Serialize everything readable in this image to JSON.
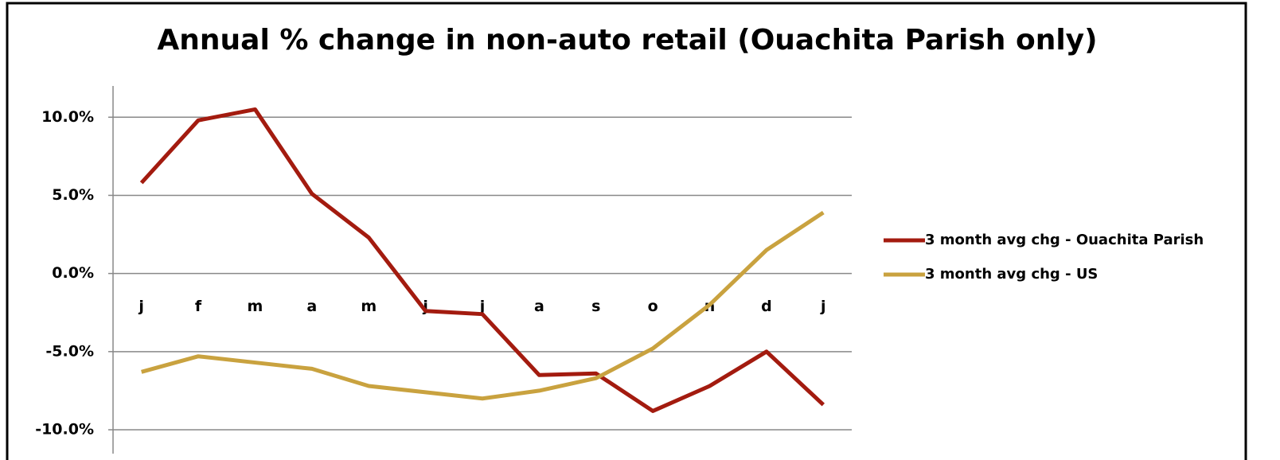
{
  "chart_data": {
    "type": "line",
    "title": "Annual % change in non-auto retail (Ouachita Parish only)",
    "categories": [
      "j",
      "f",
      "m",
      "a",
      "m",
      "j",
      "j",
      "a",
      "s",
      "o",
      "n",
      "d",
      "j"
    ],
    "series": [
      {
        "name": "3 month avg chg - Ouachita Parish",
        "color": "#a31b0f",
        "values": [
          5.8,
          9.8,
          10.5,
          5.1,
          2.3,
          -2.4,
          -2.6,
          -6.5,
          -6.4,
          -8.8,
          -7.2,
          -5.0,
          -8.4
        ]
      },
      {
        "name": "3 month avg chg - US",
        "color": "#c9a23f",
        "values": [
          -6.3,
          -5.3,
          -5.7,
          -6.1,
          -7.2,
          -7.6,
          -8.0,
          -7.5,
          -6.7,
          -4.8,
          -2.0,
          1.5,
          3.9
        ]
      }
    ],
    "ylim": [
      -10,
      12
    ],
    "yticks": [
      {
        "value": -10,
        "label": "-10.0%"
      },
      {
        "value": -5,
        "label": "-5.0%"
      },
      {
        "value": 0,
        "label": "0.0%"
      },
      {
        "value": 5,
        "label": "5.0%"
      },
      {
        "value": 10,
        "label": "10.0%"
      }
    ],
    "grid": true,
    "legend": "right"
  }
}
